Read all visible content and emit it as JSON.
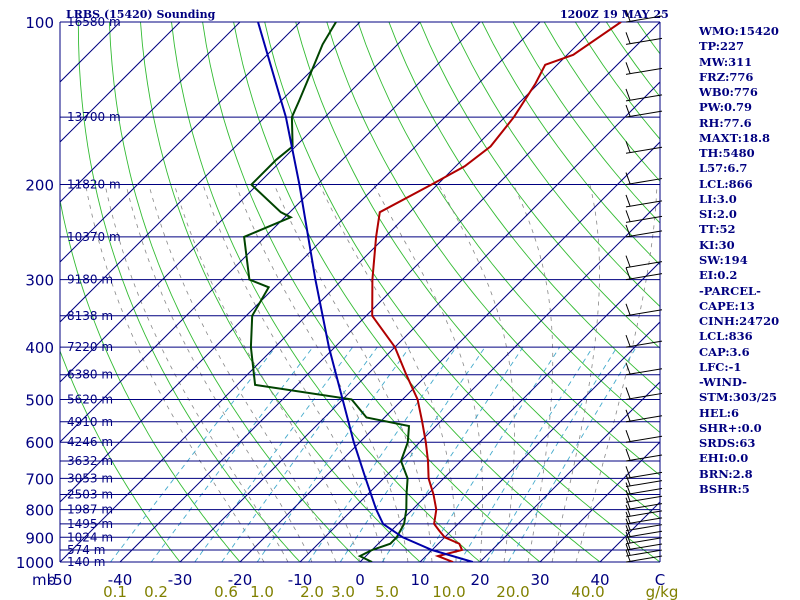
{
  "header": {
    "title": "LRBS (15420) Sounding",
    "time": "1200Z 19 MAY 25"
  },
  "stats": [
    "WMO:15420",
    "TP:227",
    "MW:311",
    "FRZ:776",
    "WB0:776",
    "PW:0.79",
    "RH:77.6",
    "MAXT:18.8",
    "TH:5480",
    "L57:6.7",
    "LCL:866",
    "LI:3.0",
    "SI:2.0",
    "TT:52",
    "KI:30",
    "SW:194",
    "EI:0.2",
    "-PARCEL-",
    "CAPE:13",
    "CINH:24720",
    "LCL:836",
    "CAP:3.6",
    "LFC:-1",
    "-WIND-",
    "STM:303/25",
    "HEL:6",
    "SHR+:0.0",
    "SRDS:63",
    "EHI:0.0",
    "BRN:2.8",
    "BSHR:5"
  ],
  "colors": {
    "isobar": "#000080",
    "isotherm": "#000080",
    "dry_adiabat": "#33bb33",
    "moist_adiabat": "#888888",
    "mixing_ratio": "#44aacc",
    "temperature": "#b00000",
    "dewpoint": "#004400",
    "parcel": "#0000aa",
    "text": "#000080",
    "mixing_label": "#808000"
  },
  "chart_data": {
    "type": "line",
    "diagram": "skew-T log-P",
    "pressure_unit": "mb",
    "temp_unit": "C",
    "mixing_unit": "g/kg",
    "p_ticks": [
      100,
      200,
      300,
      400,
      500,
      600,
      700,
      800,
      900,
      1000
    ],
    "t_ticks": [
      -50,
      -40,
      -30,
      -20,
      -10,
      0,
      10,
      20,
      30,
      40
    ],
    "t_ticks_unitless": [
      "C"
    ],
    "mixing_ratio_labels": [
      "0.1",
      "0.2",
      "0.6",
      "1.0",
      "2.0",
      "3.0",
      "5.0",
      "10.0",
      "20.0",
      "40.0"
    ],
    "heights": [
      {
        "p": 100,
        "label": "16580 m"
      },
      {
        "p": 150,
        "label": "13700 m"
      },
      {
        "p": 200,
        "label": "11820 m"
      },
      {
        "p": 250,
        "label": "10370 m"
      },
      {
        "p": 300,
        "label": "9180 m"
      },
      {
        "p": 350,
        "label": "8138 m"
      },
      {
        "p": 400,
        "label": "7220 m"
      },
      {
        "p": 450,
        "label": "6380 m"
      },
      {
        "p": 500,
        "label": "5620 m"
      },
      {
        "p": 550,
        "label": "4910 m"
      },
      {
        "p": 600,
        "label": "4246 m"
      },
      {
        "p": 650,
        "label": "3632 m"
      },
      {
        "p": 700,
        "label": "3053 m"
      },
      {
        "p": 750,
        "label": "2503 m"
      },
      {
        "p": 800,
        "label": "1987 m"
      },
      {
        "p": 850,
        "label": "1495 m"
      },
      {
        "p": 900,
        "label": "1024 m"
      },
      {
        "p": 950,
        "label": "574 m"
      },
      {
        "p": 1000,
        "label": "140 m"
      }
    ],
    "series": [
      {
        "name": "temperature",
        "points": [
          [
            1000,
            15.5
          ],
          [
            975,
            12.0
          ],
          [
            950,
            15.0
          ],
          [
            925,
            13.5
          ],
          [
            900,
            10.0
          ],
          [
            875,
            8.0
          ],
          [
            850,
            6.0
          ],
          [
            800,
            4.0
          ],
          [
            750,
            1.0
          ],
          [
            700,
            -2.5
          ],
          [
            650,
            -5.5
          ],
          [
            600,
            -9.0
          ],
          [
            550,
            -13.0
          ],
          [
            500,
            -17.5
          ],
          [
            450,
            -23.5
          ],
          [
            400,
            -30.0
          ],
          [
            350,
            -39.0
          ],
          [
            300,
            -45.0
          ],
          [
            250,
            -51.5
          ],
          [
            225,
            -55.0
          ],
          [
            200,
            -51.0
          ],
          [
            185,
            -48.5
          ],
          [
            170,
            -47.5
          ],
          [
            150,
            -48.5
          ],
          [
            130,
            -50.5
          ],
          [
            120,
            -52.0
          ],
          [
            115,
            -49.0
          ],
          [
            100,
            -46.5
          ]
        ]
      },
      {
        "name": "dewpoint",
        "points": [
          [
            1000,
            2.0
          ],
          [
            975,
            -1.0
          ],
          [
            950,
            0.0
          ],
          [
            925,
            2.0
          ],
          [
            900,
            2.0
          ],
          [
            850,
            1.0
          ],
          [
            800,
            -1.0
          ],
          [
            750,
            -3.5
          ],
          [
            700,
            -6.0
          ],
          [
            650,
            -10.0
          ],
          [
            600,
            -12.0
          ],
          [
            560,
            -14.5
          ],
          [
            540,
            -23.0
          ],
          [
            500,
            -28.5
          ],
          [
            470,
            -47.0
          ],
          [
            400,
            -54.0
          ],
          [
            350,
            -59.0
          ],
          [
            310,
            -61.0
          ],
          [
            300,
            -65.5
          ],
          [
            250,
            -73.5
          ],
          [
            230,
            -69.0
          ],
          [
            225,
            -71.5
          ],
          [
            200,
            -81.0
          ],
          [
            180,
            -81.0
          ],
          [
            170,
            -80.5
          ],
          [
            150,
            -85.5
          ],
          [
            140,
            -87.0
          ],
          [
            120,
            -90.5
          ],
          [
            110,
            -92.5
          ],
          [
            100,
            -94.0
          ]
        ]
      },
      {
        "name": "parcel",
        "points": [
          [
            1000,
            18.8
          ],
          [
            950,
            10.0
          ],
          [
            900,
            3.0
          ],
          [
            850,
            -2.5
          ],
          [
            800,
            -6.0
          ],
          [
            700,
            -13.0
          ],
          [
            600,
            -21.0
          ],
          [
            500,
            -30.0
          ],
          [
            400,
            -41.0
          ],
          [
            300,
            -54.5
          ],
          [
            200,
            -73.0
          ],
          [
            150,
            -86.5
          ],
          [
            100,
            -107.0
          ]
        ]
      }
    ],
    "wind_barbs": [
      1000,
      975,
      950,
      925,
      900,
      875,
      850,
      825,
      800,
      775,
      750,
      725,
      700,
      650,
      600,
      550,
      500,
      450,
      400,
      350,
      300,
      285,
      250,
      235,
      220,
      200,
      175,
      150,
      140,
      125,
      110,
      100
    ],
    "grid": true
  }
}
